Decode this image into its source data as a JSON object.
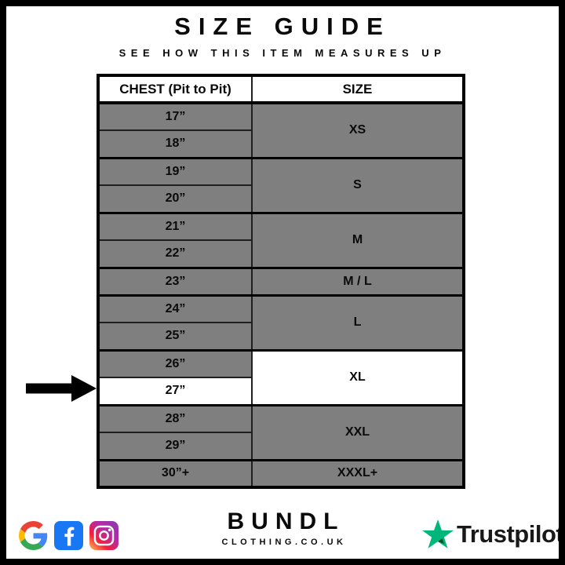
{
  "header": {
    "title": "SIZE GUIDE",
    "subtitle": "SEE HOW THIS ITEM MEASURES UP"
  },
  "table": {
    "columns": [
      "CHEST (Pit to Pit)",
      "SIZE"
    ],
    "rows": [
      {
        "chest": "17”",
        "size": "XS",
        "size_rowspan": 2
      },
      {
        "chest": "18”"
      },
      {
        "chest": "19”",
        "size": "S",
        "size_rowspan": 2
      },
      {
        "chest": "20”"
      },
      {
        "chest": "21”",
        "size": "M",
        "size_rowspan": 2
      },
      {
        "chest": "22”"
      },
      {
        "chest": "23”",
        "size": "M / L",
        "size_rowspan": 1
      },
      {
        "chest": "24”",
        "size": "L",
        "size_rowspan": 2
      },
      {
        "chest": "25”"
      },
      {
        "chest": "26”",
        "size": "XL",
        "size_rowspan": 2,
        "size_highlight": true
      },
      {
        "chest": "27”",
        "highlight": true,
        "arrow": true
      },
      {
        "chest": "28”",
        "size": "XXL",
        "size_rowspan": 2
      },
      {
        "chest": "29”"
      },
      {
        "chest": "30”+",
        "size": "XXXL+",
        "size_rowspan": 1
      }
    ]
  },
  "footer": {
    "brand_name": "BUNDL",
    "brand_domain": "CLOTHING.CO.UK",
    "trustpilot_label": "Trustpilot",
    "social_icons": [
      "google-icon",
      "facebook-icon",
      "instagram-icon"
    ]
  },
  "colors": {
    "row_gray": "#7F7F7F",
    "highlight_white": "#FFFFFF",
    "border_black": "#000000",
    "trustpilot_green": "#00B67A",
    "trustpilot_shadow": "#005128",
    "facebook_blue": "#1877F2",
    "text_dark": "#191919"
  }
}
